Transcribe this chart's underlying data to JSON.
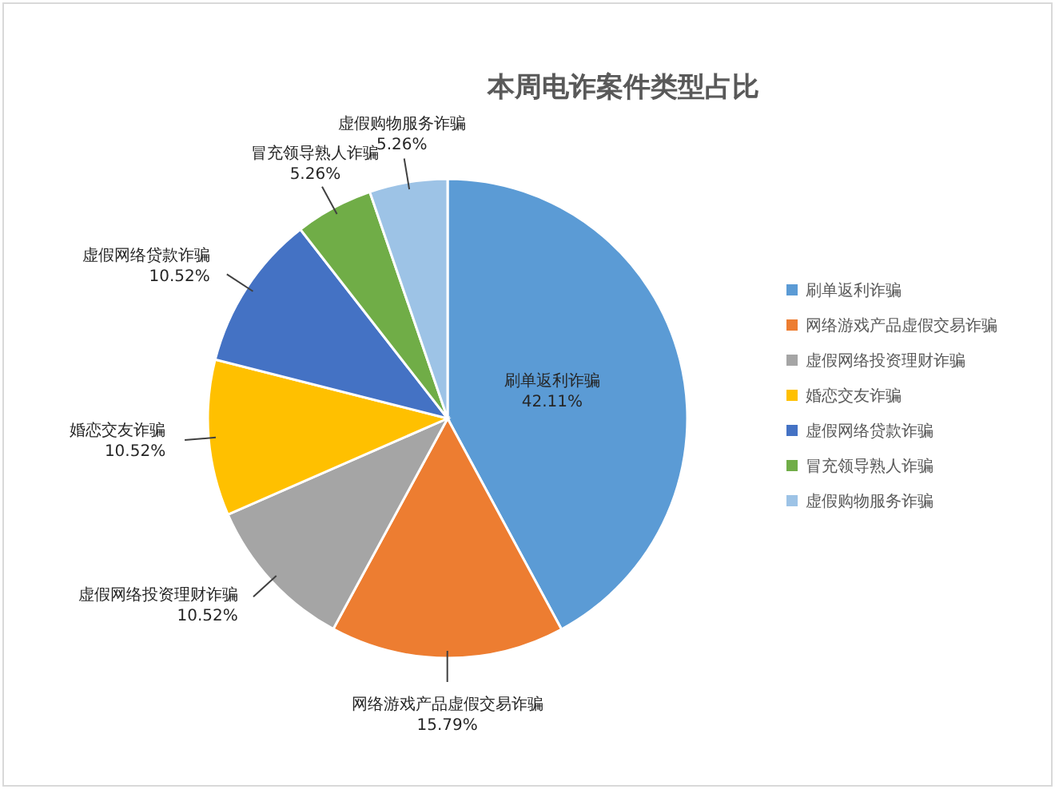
{
  "chart_data": {
    "type": "pie",
    "title": "本周电诈案件类型占比",
    "categories": [
      "刷单返利诈骗",
      "网络游戏产品虚假交易诈骗",
      "虚假网络投资理财诈骗",
      "婚恋交友诈骗",
      "虚假网络贷款诈骗",
      "冒充领导熟人诈骗",
      "虚假购物服务诈骗"
    ],
    "values": [
      42.11,
      15.79,
      10.52,
      10.52,
      10.52,
      5.26,
      5.26
    ],
    "colors": [
      "#5b9bd5",
      "#ed7d31",
      "#a5a5a5",
      "#ffc000",
      "#4472c4",
      "#70ad47",
      "#9dc3e6"
    ],
    "value_labels": [
      "42.11%",
      "15.79%",
      "10.52%",
      "10.52%",
      "10.52%",
      "5.26%",
      "5.26%"
    ],
    "legend": "right"
  }
}
